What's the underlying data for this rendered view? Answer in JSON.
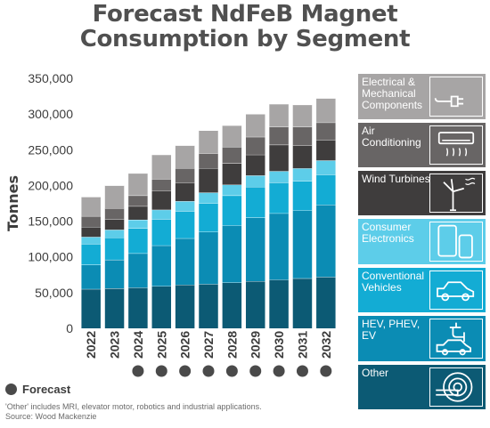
{
  "title_line1": "Forecast NdFeB Magnet",
  "title_line2": "Consumption by Segment",
  "forecast_label": "Forecast",
  "footnote": "'Other' includes MRI, elevator motor, robotics and industrial applications.",
  "source": "Source: Wood Mackenzie",
  "legend": [
    {
      "label": "Electrical & Mechanical Components",
      "color": "#a7a5a5",
      "text_color": "#ffffff",
      "icon": "plug-icon"
    },
    {
      "label": "Air Conditioning",
      "color": "#686565",
      "text_color": "#ffffff",
      "icon": "air-conditioner-icon"
    },
    {
      "label": "Wind Turbines",
      "color": "#3f3d3d",
      "text_color": "#ffffff",
      "icon": "wind-turbine-icon"
    },
    {
      "label": "Consumer Electronics",
      "color": "#5dcde9",
      "text_color": "#ffffff",
      "icon": "phone-tablet-icon"
    },
    {
      "label": "Conventional Vehicles",
      "color": "#13acd4",
      "text_color": "#ffffff",
      "icon": "car-icon"
    },
    {
      "label": "HEV, PHEV, EV",
      "color": "#0b8cb4",
      "text_color": "#ffffff",
      "icon": "ev-charging-icon"
    },
    {
      "label": "Other",
      "color": "#0c5a74",
      "text_color": "#ffffff",
      "icon": "mri-icon"
    }
  ],
  "chart_data": {
    "type": "bar",
    "stacked": true,
    "ylabel": "Tonnes",
    "ylim": [
      0,
      350000
    ],
    "yticks": [
      "0",
      "50,000",
      "100,000",
      "150,000",
      "200,000",
      "250,000",
      "300,000",
      "350,000"
    ],
    "ytick_values": [
      0,
      50000,
      100000,
      150000,
      200000,
      250000,
      300000,
      350000
    ],
    "grid": false,
    "categories": [
      "2022",
      "2023",
      "2024",
      "2025",
      "2026",
      "2027",
      "2028",
      "2029",
      "2030",
      "2031",
      "2032"
    ],
    "forecast_flags": [
      false,
      false,
      true,
      true,
      true,
      true,
      true,
      true,
      true,
      true,
      true
    ],
    "series": [
      {
        "name": "Other",
        "color": "#0c5a74",
        "values": [
          55000,
          56000,
          57000,
          59000,
          61000,
          62000,
          64000,
          66000,
          68000,
          70000,
          72000
        ]
      },
      {
        "name": "HEV, PHEV, EV",
        "color": "#0b8cb4",
        "values": [
          34000,
          40000,
          48000,
          57000,
          65000,
          73000,
          80000,
          89000,
          93000,
          95000,
          101000
        ]
      },
      {
        "name": "Conventional Vehicles",
        "color": "#13acd4",
        "values": [
          29000,
          31000,
          35000,
          37000,
          38000,
          40000,
          42000,
          43000,
          43000,
          41000,
          42000
        ]
      },
      {
        "name": "Consumer Electronics",
        "color": "#5dcde9",
        "values": [
          10000,
          11000,
          12000,
          13000,
          14000,
          15000,
          15000,
          16000,
          16000,
          18000,
          20000
        ]
      },
      {
        "name": "Wind Turbines",
        "color": "#3f3d3d",
        "values": [
          14000,
          15000,
          19000,
          27000,
          26000,
          34000,
          30000,
          29000,
          37000,
          32000,
          29000
        ]
      },
      {
        "name": "Air Conditioning",
        "color": "#686565",
        "values": [
          15000,
          15000,
          15000,
          16000,
          20000,
          21000,
          23000,
          25000,
          25000,
          26000,
          24000
        ]
      },
      {
        "name": "Electrical & Mechanical Components",
        "color": "#a7a5a5",
        "values": [
          27000,
          32000,
          31000,
          34000,
          32000,
          32000,
          30000,
          32000,
          32000,
          31000,
          34000
        ]
      }
    ]
  }
}
